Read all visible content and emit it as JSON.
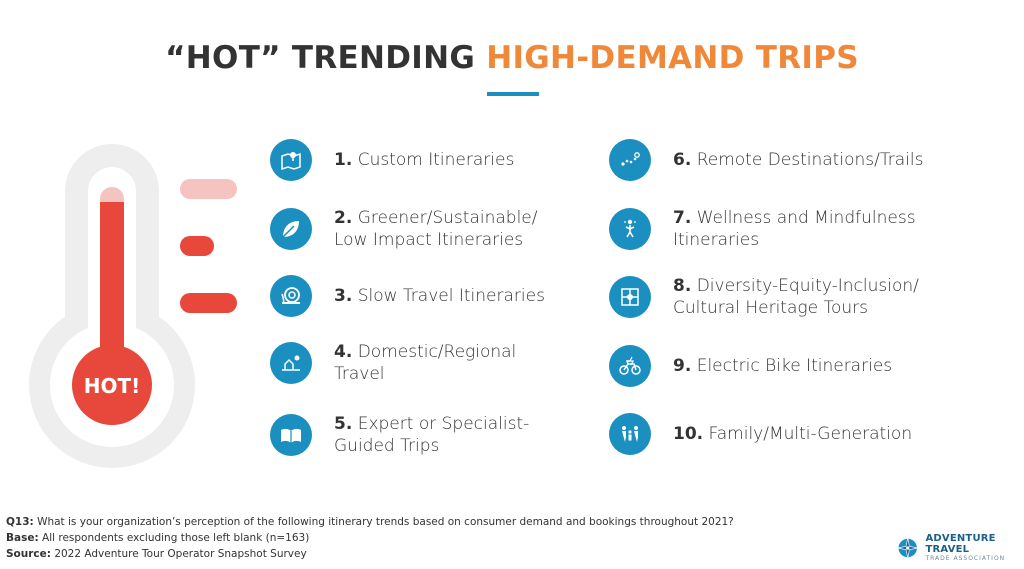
{
  "title": {
    "part1": "“HOT” TRENDING",
    "part2": "HIGH-DEMAND TRIPS"
  },
  "thermometer": {
    "bulb_label": "HOT!"
  },
  "trips": [
    {
      "num": "1.",
      "line1": "Custom Itineraries",
      "line2": "",
      "icon": "map-pin-icon"
    },
    {
      "num": "2.",
      "line1": "Greener/Sustainable/",
      "line2": "Low Impact Itineraries",
      "icon": "leaf-icon"
    },
    {
      "num": "3.",
      "line1": "Slow Travel Itineraries",
      "line2": "",
      "icon": "snail-icon"
    },
    {
      "num": "4.",
      "line1": "Domestic/Regional",
      "line2": "Travel",
      "icon": "house-landscape-icon"
    },
    {
      "num": "5.",
      "line1": "Expert or Specialist-",
      "line2": "Guided Trips",
      "icon": "open-book-icon"
    },
    {
      "num": "6.",
      "line1": "Remote Destinations/Trails",
      "line2": "",
      "icon": "trail-dots-icon"
    },
    {
      "num": "7.",
      "line1": "Wellness and Mindfulness",
      "line2": "Itineraries",
      "icon": "meditation-figure-icon"
    },
    {
      "num": "8.",
      "line1": "Diversity-Equity-Inclusion/",
      "line2": "Cultural Heritage Tours",
      "icon": "joined-hands-icon"
    },
    {
      "num": "9.",
      "line1": "Electric Bike Itineraries",
      "line2": "",
      "icon": "electric-bike-icon"
    },
    {
      "num": "10.",
      "line1": "Family/Multi-Generation",
      "line2": "",
      "icon": "family-icon"
    }
  ],
  "footer": {
    "q_label": "Q13:",
    "q_text": " What is your organization’s perception of the following itinerary trends based on consumer demand and bookings throughout 2021?",
    "base_label": "Base:",
    "base_text": " All respondents excluding those left blank (n=163)",
    "source_label": "Source:",
    "source_text": " 2022 Adventure Tour Operator Snapshot Survey"
  },
  "logo": {
    "line1": "ADVENTURE TRAVEL",
    "line2": "TRADE ASSOCIATION"
  },
  "colors": {
    "accent_orange": "#f0883a",
    "icon_blue": "#1b8fc0",
    "thermo_red": "#e8483b",
    "thermo_pink": "#f6c4c0",
    "thermo_gray": "#eeeeee"
  }
}
